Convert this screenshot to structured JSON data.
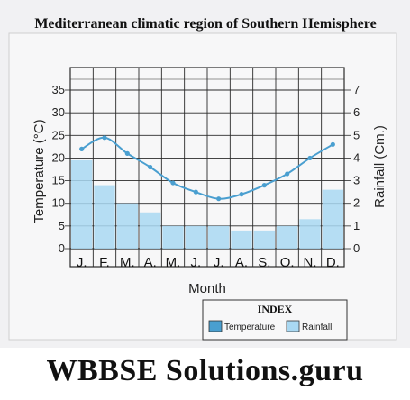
{
  "chart_data": {
    "type": "bar",
    "title": "Mediterranean climatic region of Southern Hemisphere",
    "xlabel": "Month",
    "ylabel_left": "Temperature (°C)",
    "ylabel_right": "Rainfall (Cm.)",
    "categories": [
      "J.",
      "F.",
      "M.",
      "A.",
      "M.",
      "J.",
      "J.",
      "A.",
      "S.",
      "O.",
      "N.",
      "D."
    ],
    "left_axis": {
      "ticks": [
        "35",
        "30",
        "25",
        "20",
        "15",
        "10",
        "5",
        "0"
      ],
      "ylim": [
        0,
        35
      ]
    },
    "right_axis": {
      "ticks": [
        "7",
        "6",
        "5",
        "4",
        "3",
        "2",
        "1",
        "0"
      ],
      "ylim": [
        0,
        7
      ]
    },
    "series": [
      {
        "name": "Temperature",
        "type": "line",
        "axis": "left",
        "values": [
          22,
          24.5,
          21,
          18,
          14.5,
          12.5,
          11,
          12,
          14,
          16.5,
          20,
          23
        ]
      },
      {
        "name": "Rainfall",
        "type": "bar",
        "axis": "right",
        "values": [
          3.9,
          2.8,
          2.0,
          1.6,
          1.0,
          1.0,
          1.0,
          0.8,
          0.8,
          1.0,
          1.3,
          2.6
        ]
      }
    ],
    "legend": {
      "title": "INDEX",
      "items": [
        "Temperature",
        "Rainfall"
      ],
      "placement": "bottom-right"
    },
    "colors": {
      "temperature": "#4a9fd0",
      "rainfall": "#a9d8f2",
      "grid": "#2a2a2a",
      "paper": "#f4f4f6"
    }
  },
  "watermark": "WBBSE Solutions.guru"
}
